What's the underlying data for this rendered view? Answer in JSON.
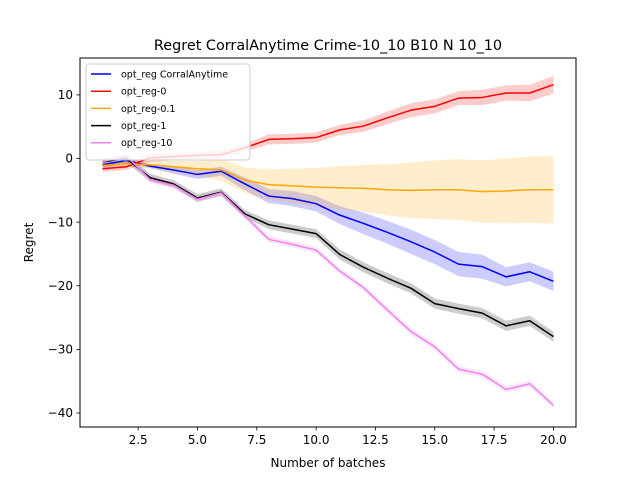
{
  "chart_data": {
    "type": "line",
    "title": "Regret CorralAnytime Crime-10_10 B10 N 10_10",
    "xlabel": "Number of batches",
    "ylabel": "Regret",
    "xlim": [
      0.05,
      20.95
    ],
    "ylim": [
      -42.2,
      15.8
    ],
    "xticks": [
      2.5,
      5.0,
      7.5,
      10.0,
      12.5,
      15.0,
      17.5,
      20.0
    ],
    "xtick_labels": [
      "2.5",
      "5.0",
      "7.5",
      "10.0",
      "12.5",
      "15.0",
      "17.5",
      "20.0"
    ],
    "yticks": [
      10,
      0,
      -10,
      -20,
      -30,
      -40
    ],
    "ytick_labels": [
      "10",
      "0",
      "−10",
      "−20",
      "−30",
      "−40"
    ],
    "grid": false,
    "legend_position": "upper-left",
    "x": [
      1,
      2,
      3,
      4,
      5,
      6,
      7,
      8,
      9,
      10,
      11,
      12,
      13,
      14,
      15,
      16,
      17,
      18,
      19,
      20
    ],
    "series": [
      {
        "name": "opt_reg CorralAnytime",
        "color": "#0000ff",
        "values": [
          -1.0,
          -0.3,
          -1.2,
          -1.8,
          -2.5,
          -2.0,
          -4.0,
          -5.9,
          -6.3,
          -7.1,
          -8.9,
          -10.2,
          -11.6,
          -13.1,
          -14.7,
          -16.6,
          -17.0,
          -18.6,
          -17.8,
          -19.3
        ],
        "lower": [
          -1.5,
          -0.8,
          -1.5,
          -2.4,
          -3.2,
          -2.7,
          -5.0,
          -7.0,
          -7.5,
          -8.3,
          -10.3,
          -11.9,
          -13.4,
          -15.0,
          -16.6,
          -18.5,
          -18.9,
          -20.1,
          -19.3,
          -20.8
        ],
        "upper": [
          -0.5,
          0.2,
          -0.9,
          -1.2,
          -1.8,
          -1.3,
          -3.0,
          -4.8,
          -5.1,
          -5.9,
          -7.5,
          -8.5,
          -9.8,
          -11.2,
          -12.8,
          -14.7,
          -15.1,
          -17.1,
          -16.3,
          -17.8
        ]
      },
      {
        "name": "opt_reg-0",
        "color": "#ff0000",
        "values": [
          -1.6,
          -1.3,
          0.1,
          0.3,
          0.5,
          0.6,
          1.7,
          3.0,
          3.1,
          3.3,
          4.5,
          5.1,
          6.4,
          7.6,
          8.2,
          9.5,
          9.6,
          10.3,
          10.3,
          11.6
        ],
        "lower": [
          -2.1,
          -1.8,
          -0.5,
          -0.3,
          -0.1,
          0.0,
          1.1,
          2.2,
          2.3,
          2.5,
          3.7,
          4.2,
          5.4,
          6.5,
          7.1,
          8.4,
          8.4,
          9.1,
          9.0,
          10.2
        ],
        "upper": [
          -1.1,
          -0.8,
          0.7,
          0.9,
          1.1,
          1.2,
          2.3,
          3.8,
          3.9,
          4.1,
          5.3,
          6.0,
          7.4,
          8.7,
          9.3,
          10.6,
          10.8,
          11.5,
          11.6,
          13.0
        ]
      },
      {
        "name": "opt_reg-0.1",
        "color": "#ffa500",
        "values": [
          -1.1,
          -0.8,
          -1.0,
          -1.3,
          -1.6,
          -1.8,
          -3.4,
          -4.1,
          -4.3,
          -4.5,
          -4.6,
          -4.7,
          -4.9,
          -5.0,
          -4.9,
          -4.9,
          -5.2,
          -5.1,
          -4.9,
          -4.9
        ],
        "lower": [
          -1.5,
          -1.2,
          -1.6,
          -2.2,
          -2.8,
          -3.5,
          -5.4,
          -6.5,
          -7.0,
          -7.5,
          -8.0,
          -8.4,
          -8.9,
          -9.4,
          -9.5,
          -9.7,
          -10.1,
          -10.2,
          -10.1,
          -10.2
        ],
        "upper": [
          -0.7,
          -0.4,
          -0.4,
          -0.4,
          -0.4,
          -0.1,
          -1.4,
          -1.7,
          -1.6,
          -1.5,
          -1.2,
          -1.0,
          -0.9,
          -0.6,
          -0.3,
          -0.1,
          -0.3,
          0.0,
          0.3,
          0.4
        ]
      },
      {
        "name": "opt_reg-1",
        "color": "#000000",
        "values": [
          -0.5,
          0.0,
          -3.0,
          -4.0,
          -6.2,
          -5.3,
          -8.7,
          -10.4,
          -11.1,
          -11.8,
          -15.1,
          -17.1,
          -18.8,
          -20.4,
          -22.8,
          -23.6,
          -24.3,
          -26.3,
          -25.5,
          -28.0
        ],
        "lower": [
          -1.0,
          -0.6,
          -3.6,
          -4.6,
          -6.8,
          -5.9,
          -9.3,
          -11.1,
          -11.8,
          -12.5,
          -15.9,
          -17.9,
          -19.6,
          -21.2,
          -23.6,
          -24.4,
          -25.1,
          -27.1,
          -26.3,
          -28.8
        ],
        "upper": [
          0.0,
          0.6,
          -2.4,
          -3.4,
          -5.6,
          -4.7,
          -8.1,
          -9.7,
          -10.4,
          -11.1,
          -14.3,
          -16.3,
          -18.0,
          -19.6,
          -22.0,
          -22.8,
          -23.5,
          -25.5,
          -24.7,
          -27.2
        ]
      },
      {
        "name": "opt_reg-10",
        "color": "#ee82ee",
        "values": [
          -0.5,
          0.4,
          -3.3,
          -4.2,
          -6.4,
          -5.4,
          -9.0,
          -12.7,
          -13.5,
          -14.4,
          -17.7,
          -20.3,
          -23.8,
          -27.2,
          -29.6,
          -33.1,
          -33.9,
          -36.3,
          -35.4,
          -38.8
        ],
        "lower": [
          -1.0,
          -0.1,
          -3.8,
          -4.7,
          -6.9,
          -5.9,
          -9.5,
          -13.2,
          -14.0,
          -14.9,
          -18.2,
          -20.8,
          -24.3,
          -27.7,
          -30.1,
          -33.6,
          -34.4,
          -36.8,
          -35.9,
          -39.3
        ],
        "upper": [
          0.0,
          0.9,
          -2.8,
          -3.7,
          -5.9,
          -4.9,
          -8.5,
          -12.2,
          -13.0,
          -13.9,
          -17.2,
          -19.8,
          -23.3,
          -26.7,
          -29.1,
          -32.6,
          -33.4,
          -35.8,
          -34.9,
          -38.3
        ]
      }
    ]
  }
}
